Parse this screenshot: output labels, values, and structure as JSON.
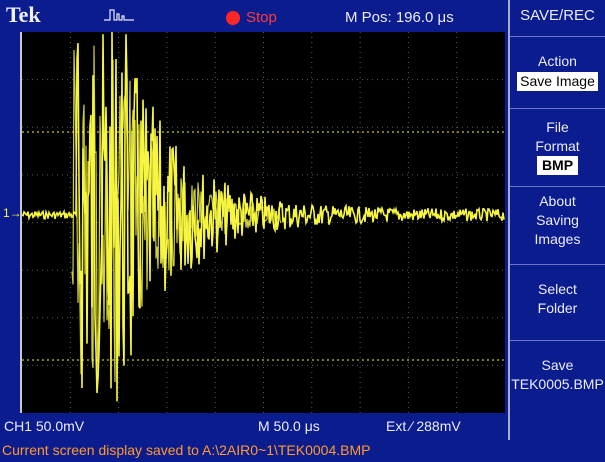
{
  "header": {
    "brand": "Tek",
    "state": "Stop",
    "m_pos": "M Pos: 196.0 μs"
  },
  "menu": {
    "title": "SAVE/REC",
    "action": {
      "label": "Action",
      "value": "Save Image"
    },
    "file_format": {
      "line1": "File",
      "line2": "Format",
      "value": "BMP"
    },
    "about": {
      "line1": "About",
      "line2": "Saving",
      "line3": "Images"
    },
    "select_folder": {
      "line1": "Select",
      "line2": "Folder"
    },
    "save": {
      "line1": "Save",
      "line2": "TEK0005.BMP"
    }
  },
  "status": {
    "channel": "CH1  50.0mV",
    "timebase": "M 50.0 μs",
    "trigger": "Ext  ∕  288mV",
    "message": "Current screen display saved to A:\\2AIR0~1\\TEK0004.BMP"
  },
  "markers": {
    "ch1": "1→"
  },
  "colors": {
    "trace": "#f5f542",
    "background": "#0b1c8e",
    "message": "#ff9a2e",
    "stop": "#ff2626"
  }
}
